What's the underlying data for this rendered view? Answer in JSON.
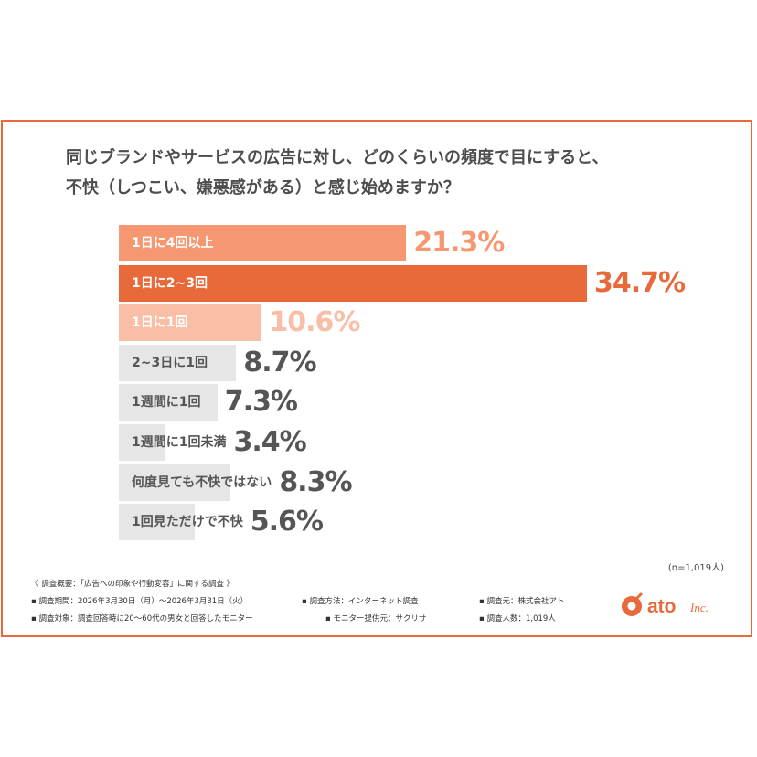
{
  "title_lines": [
    "同じブランドやサービスの広告に対し、どのくらいの頻度で目にすると、",
    "不快（しつこい、嫌悪感がある）と感じ始めますか？"
  ],
  "chart_data": {
    "type": "bar",
    "orientation": "horizontal",
    "categories": [
      "1日に4回以上",
      "1日に2~3回",
      "1日に1回",
      "2~3日に1回",
      "1週間に1回",
      "1週間に1回未満",
      "何度見ても不快ではない",
      "1回見ただけで不快"
    ],
    "values": [
      21.3,
      34.7,
      10.6,
      8.7,
      7.3,
      3.4,
      8.3,
      5.6
    ],
    "value_labels": [
      "21.3%",
      "34.7%",
      "10.6%",
      "8.7%",
      "7.3%",
      "3.4%",
      "8.3%",
      "5.6%"
    ],
    "bar_colors": [
      "#f59872",
      "#e8693a",
      "#f9bfa6",
      "#e6e6e6",
      "#e6e6e6",
      "#e6e6e6",
      "#e6e6e6",
      "#e6e6e6"
    ],
    "label_colors": [
      "#ffffff",
      "#ffffff",
      "#ffffff",
      "#555555",
      "#555555",
      "#555555",
      "#555555",
      "#555555"
    ],
    "value_colors": [
      "#f59872",
      "#e8693a",
      "#f9bfa6",
      "#555555",
      "#555555",
      "#555555",
      "#555555",
      "#555555"
    ],
    "xlim": [
      0,
      34.7
    ]
  },
  "sample_size": "(n=1,019人)",
  "footnote": {
    "heading": "《 調査概要：「広告への印象や行動変容」に関する調査 》",
    "period": "▪ 調査期間：2026年3月30日（月）～2026年3月31日（火）",
    "method": "▪ 調査方法：インターネット調査",
    "organizer": "▪ 調査元：株式会社アト",
    "target": "▪ 調査対象：調査回答時に20～60代の男女と回答したモニター",
    "provider": "▪ モニター提供元：サクリサ",
    "count": "▪ 調査人数：1,019人"
  },
  "logo": {
    "text": "ato",
    "suffix": "Inc.",
    "color": "#e8693a"
  }
}
